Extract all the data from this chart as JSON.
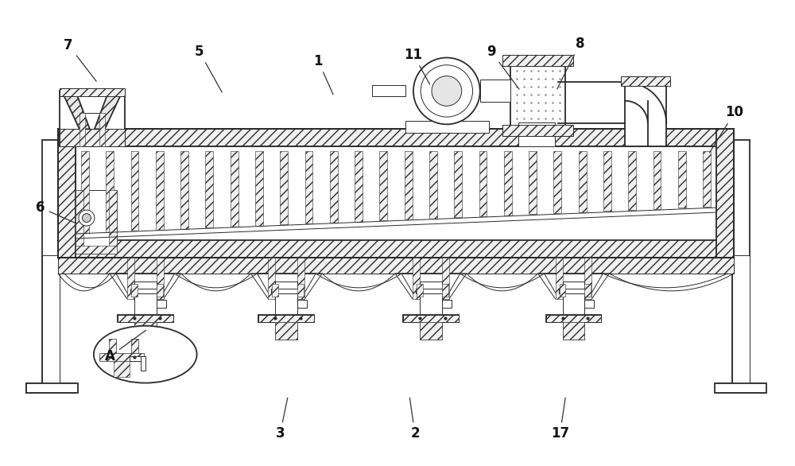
{
  "bg_color": "#ffffff",
  "lc": "#2a2a2a",
  "lw": 1.3,
  "lt": 0.7,
  "hatch": "///",
  "figsize": [
    10.0,
    5.86
  ],
  "dpi": 100,
  "label_arrows": {
    "7": [
      0.85,
      5.3,
      1.22,
      4.82
    ],
    "5": [
      2.5,
      5.22,
      2.8,
      4.68
    ],
    "1": [
      4.0,
      5.1,
      4.2,
      4.65
    ],
    "11": [
      5.2,
      5.18,
      5.42,
      4.78
    ],
    "9": [
      6.18,
      5.22,
      6.55,
      4.72
    ],
    "8": [
      7.3,
      5.32,
      7.0,
      4.72
    ],
    "10": [
      9.25,
      4.45,
      8.92,
      3.92
    ],
    "6": [
      0.5,
      3.25,
      0.95,
      3.05
    ],
    "A": [
      1.38,
      1.38,
      1.85,
      1.72
    ],
    "3": [
      3.52,
      0.4,
      3.62,
      0.88
    ],
    "2": [
      5.22,
      0.4,
      5.15,
      0.88
    ],
    "17": [
      7.05,
      0.4,
      7.12,
      0.88
    ]
  }
}
